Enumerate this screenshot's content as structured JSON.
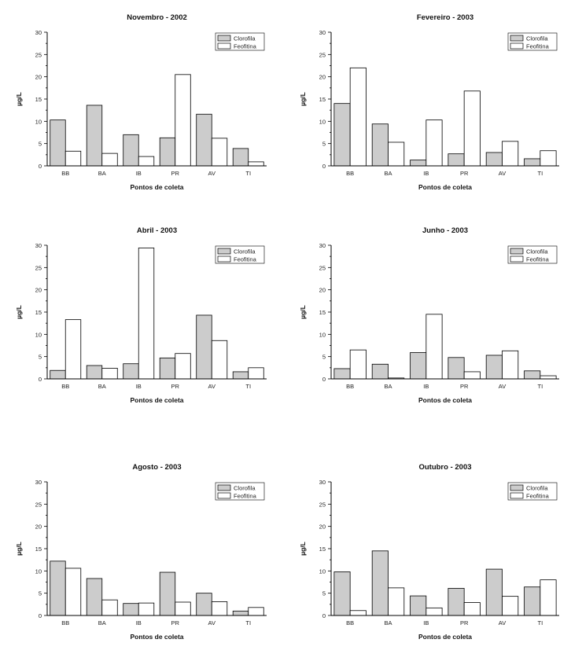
{
  "chart_data": [
    {
      "type": "bar",
      "title": "Novembro - 2002",
      "xlabel": "Pontos de coleta",
      "ylabel": "µg/L",
      "ylim": [
        0,
        30
      ],
      "yticks": [
        0,
        5,
        10,
        15,
        20,
        25,
        30
      ],
      "categories": [
        "BB",
        "BA",
        "IB",
        "PR",
        "AV",
        "TI"
      ],
      "legend_position": "top-right",
      "series": [
        {
          "name": "Clorofila",
          "color": "#cccccc",
          "values": [
            10.3,
            13.6,
            7.0,
            6.3,
            11.6,
            3.9
          ]
        },
        {
          "name": "Feofitina",
          "color": "#ffffff",
          "values": [
            3.3,
            2.8,
            2.1,
            20.5,
            6.2,
            0.9
          ]
        }
      ]
    },
    {
      "type": "bar",
      "title": "Fevereiro - 2003",
      "xlabel": "Pontos de coleta",
      "ylabel": "µg/L",
      "ylim": [
        0,
        30
      ],
      "yticks": [
        0,
        5,
        10,
        15,
        20,
        25,
        30
      ],
      "categories": [
        "BB",
        "BA",
        "IB",
        "PR",
        "AV",
        "TI"
      ],
      "legend_position": "top-right",
      "series": [
        {
          "name": "Clorofila",
          "color": "#cccccc",
          "values": [
            14.0,
            9.4,
            1.3,
            2.7,
            3.0,
            1.6
          ]
        },
        {
          "name": "Feofitina",
          "color": "#ffffff",
          "values": [
            22.0,
            5.3,
            10.3,
            16.8,
            5.5,
            3.4
          ]
        }
      ]
    },
    {
      "type": "bar",
      "title": "Abril - 2003",
      "xlabel": "Pontos de coleta",
      "ylabel": "µg/L",
      "ylim": [
        0,
        30
      ],
      "yticks": [
        0,
        5,
        10,
        15,
        20,
        25,
        30
      ],
      "categories": [
        "BB",
        "BA",
        "IB",
        "PR",
        "AV",
        "TI"
      ],
      "legend_position": "top-right",
      "series": [
        {
          "name": "Clorofila",
          "color": "#cccccc",
          "values": [
            1.9,
            3.0,
            3.4,
            4.7,
            14.3,
            1.6
          ]
        },
        {
          "name": "Feofitina",
          "color": "#ffffff",
          "values": [
            13.3,
            2.4,
            29.4,
            5.7,
            8.6,
            2.5
          ]
        }
      ]
    },
    {
      "type": "bar",
      "title": "Junho - 2003",
      "xlabel": "Pontos de coleta",
      "ylabel": "µg/L",
      "ylim": [
        0,
        30
      ],
      "yticks": [
        0,
        5,
        10,
        15,
        20,
        25,
        30
      ],
      "categories": [
        "BB",
        "BA",
        "IB",
        "PR",
        "AV",
        "TI"
      ],
      "legend_position": "top-right",
      "series": [
        {
          "name": "Clorofila",
          "color": "#cccccc",
          "values": [
            2.3,
            3.3,
            5.9,
            4.8,
            5.3,
            1.8
          ]
        },
        {
          "name": "Feofitina",
          "color": "#ffffff",
          "values": [
            6.5,
            0.2,
            14.5,
            1.6,
            6.3,
            0.7
          ]
        }
      ]
    },
    {
      "type": "bar",
      "title": "Agosto - 2003",
      "xlabel": "Pontos de coleta",
      "ylabel": "µg/L",
      "ylim": [
        0,
        30
      ],
      "yticks": [
        0,
        5,
        10,
        15,
        20,
        25,
        30
      ],
      "categories": [
        "BB",
        "BA",
        "IB",
        "PR",
        "AV",
        "TI"
      ],
      "legend_position": "top-right",
      "series": [
        {
          "name": "Clorofila",
          "color": "#cccccc",
          "values": [
            12.2,
            8.3,
            2.7,
            9.7,
            5.0,
            1.0
          ]
        },
        {
          "name": "Feofitina",
          "color": "#ffffff",
          "values": [
            10.6,
            3.5,
            2.8,
            3.0,
            3.1,
            1.8
          ]
        }
      ]
    },
    {
      "type": "bar",
      "title": "Outubro - 2003",
      "xlabel": "Pontos de coleta",
      "ylabel": "µg/L",
      "ylim": [
        0,
        30
      ],
      "yticks": [
        0,
        5,
        10,
        15,
        20,
        25,
        30
      ],
      "categories": [
        "BB",
        "BA",
        "IB",
        "PR",
        "AV",
        "TI"
      ],
      "legend_position": "top-right",
      "series": [
        {
          "name": "Clorofila",
          "color": "#cccccc",
          "values": [
            9.8,
            14.5,
            4.4,
            6.1,
            10.4,
            6.4
          ]
        },
        {
          "name": "Feofitina",
          "color": "#ffffff",
          "values": [
            1.1,
            6.2,
            1.7,
            2.9,
            4.3,
            8.0
          ]
        }
      ]
    }
  ]
}
